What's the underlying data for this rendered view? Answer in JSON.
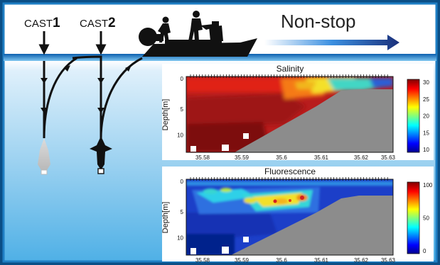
{
  "labels": {
    "cast1_prefix": "CAST",
    "cast1_num": "1",
    "cast2_prefix": "CAST",
    "cast2_num": "2",
    "nonstop": "Non-stop"
  },
  "colors": {
    "frame_blue": "#1f7fc4",
    "frame_dark": "#0b4f86",
    "water_line": "#2a8ad6",
    "arrow_dark": "#1a2f7a",
    "seabed_gray": "#8c8c8c",
    "ink": "#111111"
  },
  "icons": {
    "boat": "boat-icon",
    "winch": "winch-reel-icon",
    "people": "person-silhouette-icon",
    "instrument": "ctd-probe-icon"
  },
  "chart_data": [
    {
      "type": "heatmap",
      "title": "Salinity",
      "xlabel": "",
      "ylabel": "Depth[m]",
      "x_ticks": [
        "35.58",
        "35.59",
        "35.6",
        "35.61",
        "35.62",
        "35.63"
      ],
      "y_ticks": [
        "0",
        "5",
        "10"
      ],
      "colorbar_ticks": [
        "30",
        "25",
        "20",
        "15",
        "10"
      ],
      "colormap": "jet",
      "value_range": [
        10,
        32
      ]
    },
    {
      "type": "heatmap",
      "title": "Fluorescence",
      "xlabel": "",
      "ylabel": "Depth[m]",
      "x_ticks": [
        "35.58",
        "35.59",
        "35.6",
        "35.61",
        "35.62",
        "35.63"
      ],
      "y_ticks": [
        "0",
        "5",
        "10"
      ],
      "colorbar_ticks": [
        "100",
        "50",
        "0"
      ],
      "colormap": "jet",
      "value_range": [
        0,
        110
      ]
    }
  ]
}
